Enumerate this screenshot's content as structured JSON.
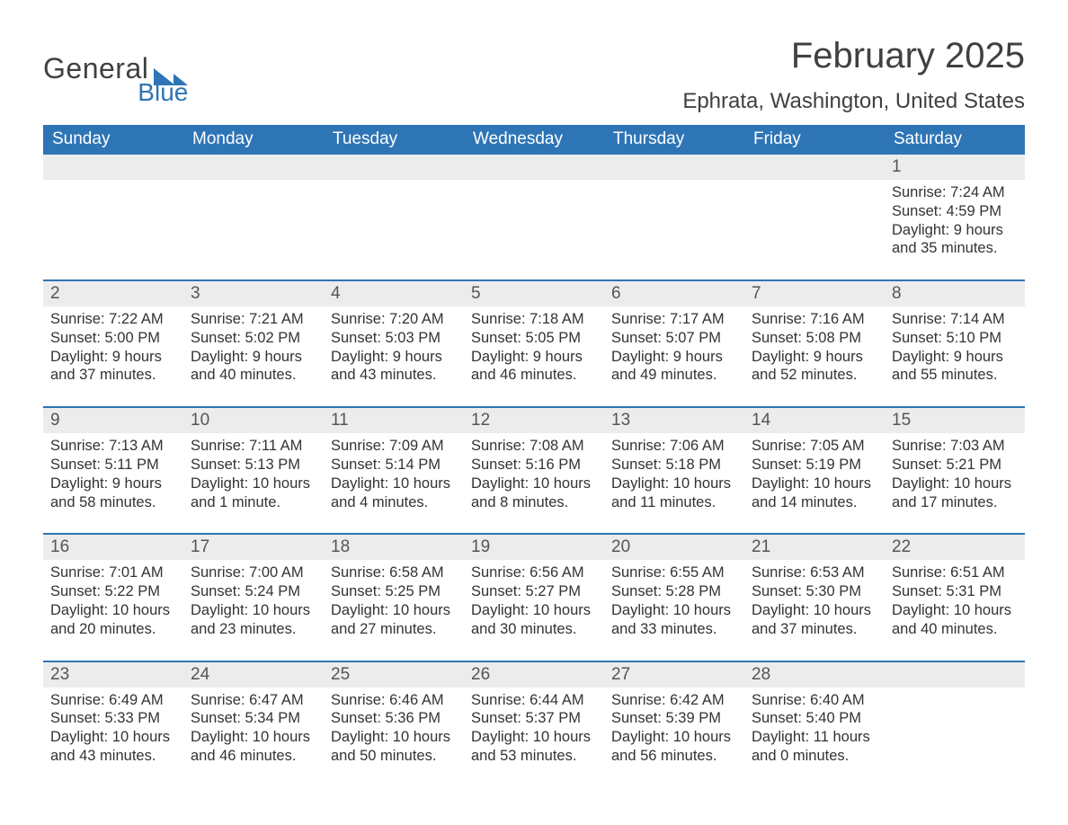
{
  "logo": {
    "text1": "General",
    "text2": "Blue",
    "brand_color": "#2e75b6",
    "text_color": "#404040"
  },
  "title": "February 2025",
  "location": "Ephrata, Washington, United States",
  "colors": {
    "header_bg": "#2e75b6",
    "header_text": "#ffffff",
    "daynum_bg": "#ececec",
    "body_text": "#333333",
    "background": "#ffffff",
    "row_border": "#2e75b6"
  },
  "day_headers": [
    "Sunday",
    "Monday",
    "Tuesday",
    "Wednesday",
    "Thursday",
    "Friday",
    "Saturday"
  ],
  "weeks": [
    [
      {
        "day": "",
        "sunrise": "",
        "sunset": "",
        "daylight": ""
      },
      {
        "day": "",
        "sunrise": "",
        "sunset": "",
        "daylight": ""
      },
      {
        "day": "",
        "sunrise": "",
        "sunset": "",
        "daylight": ""
      },
      {
        "day": "",
        "sunrise": "",
        "sunset": "",
        "daylight": ""
      },
      {
        "day": "",
        "sunrise": "",
        "sunset": "",
        "daylight": ""
      },
      {
        "day": "",
        "sunrise": "",
        "sunset": "",
        "daylight": ""
      },
      {
        "day": "1",
        "sunrise": "Sunrise: 7:24 AM",
        "sunset": "Sunset: 4:59 PM",
        "daylight": "Daylight: 9 hours and 35 minutes."
      }
    ],
    [
      {
        "day": "2",
        "sunrise": "Sunrise: 7:22 AM",
        "sunset": "Sunset: 5:00 PM",
        "daylight": "Daylight: 9 hours and 37 minutes."
      },
      {
        "day": "3",
        "sunrise": "Sunrise: 7:21 AM",
        "sunset": "Sunset: 5:02 PM",
        "daylight": "Daylight: 9 hours and 40 minutes."
      },
      {
        "day": "4",
        "sunrise": "Sunrise: 7:20 AM",
        "sunset": "Sunset: 5:03 PM",
        "daylight": "Daylight: 9 hours and 43 minutes."
      },
      {
        "day": "5",
        "sunrise": "Sunrise: 7:18 AM",
        "sunset": "Sunset: 5:05 PM",
        "daylight": "Daylight: 9 hours and 46 minutes."
      },
      {
        "day": "6",
        "sunrise": "Sunrise: 7:17 AM",
        "sunset": "Sunset: 5:07 PM",
        "daylight": "Daylight: 9 hours and 49 minutes."
      },
      {
        "day": "7",
        "sunrise": "Sunrise: 7:16 AM",
        "sunset": "Sunset: 5:08 PM",
        "daylight": "Daylight: 9 hours and 52 minutes."
      },
      {
        "day": "8",
        "sunrise": "Sunrise: 7:14 AM",
        "sunset": "Sunset: 5:10 PM",
        "daylight": "Daylight: 9 hours and 55 minutes."
      }
    ],
    [
      {
        "day": "9",
        "sunrise": "Sunrise: 7:13 AM",
        "sunset": "Sunset: 5:11 PM",
        "daylight": "Daylight: 9 hours and 58 minutes."
      },
      {
        "day": "10",
        "sunrise": "Sunrise: 7:11 AM",
        "sunset": "Sunset: 5:13 PM",
        "daylight": "Daylight: 10 hours and 1 minute."
      },
      {
        "day": "11",
        "sunrise": "Sunrise: 7:09 AM",
        "sunset": "Sunset: 5:14 PM",
        "daylight": "Daylight: 10 hours and 4 minutes."
      },
      {
        "day": "12",
        "sunrise": "Sunrise: 7:08 AM",
        "sunset": "Sunset: 5:16 PM",
        "daylight": "Daylight: 10 hours and 8 minutes."
      },
      {
        "day": "13",
        "sunrise": "Sunrise: 7:06 AM",
        "sunset": "Sunset: 5:18 PM",
        "daylight": "Daylight: 10 hours and 11 minutes."
      },
      {
        "day": "14",
        "sunrise": "Sunrise: 7:05 AM",
        "sunset": "Sunset: 5:19 PM",
        "daylight": "Daylight: 10 hours and 14 minutes."
      },
      {
        "day": "15",
        "sunrise": "Sunrise: 7:03 AM",
        "sunset": "Sunset: 5:21 PM",
        "daylight": "Daylight: 10 hours and 17 minutes."
      }
    ],
    [
      {
        "day": "16",
        "sunrise": "Sunrise: 7:01 AM",
        "sunset": "Sunset: 5:22 PM",
        "daylight": "Daylight: 10 hours and 20 minutes."
      },
      {
        "day": "17",
        "sunrise": "Sunrise: 7:00 AM",
        "sunset": "Sunset: 5:24 PM",
        "daylight": "Daylight: 10 hours and 23 minutes."
      },
      {
        "day": "18",
        "sunrise": "Sunrise: 6:58 AM",
        "sunset": "Sunset: 5:25 PM",
        "daylight": "Daylight: 10 hours and 27 minutes."
      },
      {
        "day": "19",
        "sunrise": "Sunrise: 6:56 AM",
        "sunset": "Sunset: 5:27 PM",
        "daylight": "Daylight: 10 hours and 30 minutes."
      },
      {
        "day": "20",
        "sunrise": "Sunrise: 6:55 AM",
        "sunset": "Sunset: 5:28 PM",
        "daylight": "Daylight: 10 hours and 33 minutes."
      },
      {
        "day": "21",
        "sunrise": "Sunrise: 6:53 AM",
        "sunset": "Sunset: 5:30 PM",
        "daylight": "Daylight: 10 hours and 37 minutes."
      },
      {
        "day": "22",
        "sunrise": "Sunrise: 6:51 AM",
        "sunset": "Sunset: 5:31 PM",
        "daylight": "Daylight: 10 hours and 40 minutes."
      }
    ],
    [
      {
        "day": "23",
        "sunrise": "Sunrise: 6:49 AM",
        "sunset": "Sunset: 5:33 PM",
        "daylight": "Daylight: 10 hours and 43 minutes."
      },
      {
        "day": "24",
        "sunrise": "Sunrise: 6:47 AM",
        "sunset": "Sunset: 5:34 PM",
        "daylight": "Daylight: 10 hours and 46 minutes."
      },
      {
        "day": "25",
        "sunrise": "Sunrise: 6:46 AM",
        "sunset": "Sunset: 5:36 PM",
        "daylight": "Daylight: 10 hours and 50 minutes."
      },
      {
        "day": "26",
        "sunrise": "Sunrise: 6:44 AM",
        "sunset": "Sunset: 5:37 PM",
        "daylight": "Daylight: 10 hours and 53 minutes."
      },
      {
        "day": "27",
        "sunrise": "Sunrise: 6:42 AM",
        "sunset": "Sunset: 5:39 PM",
        "daylight": "Daylight: 10 hours and 56 minutes."
      },
      {
        "day": "28",
        "sunrise": "Sunrise: 6:40 AM",
        "sunset": "Sunset: 5:40 PM",
        "daylight": "Daylight: 11 hours and 0 minutes."
      },
      {
        "day": "",
        "sunrise": "",
        "sunset": "",
        "daylight": ""
      }
    ]
  ]
}
